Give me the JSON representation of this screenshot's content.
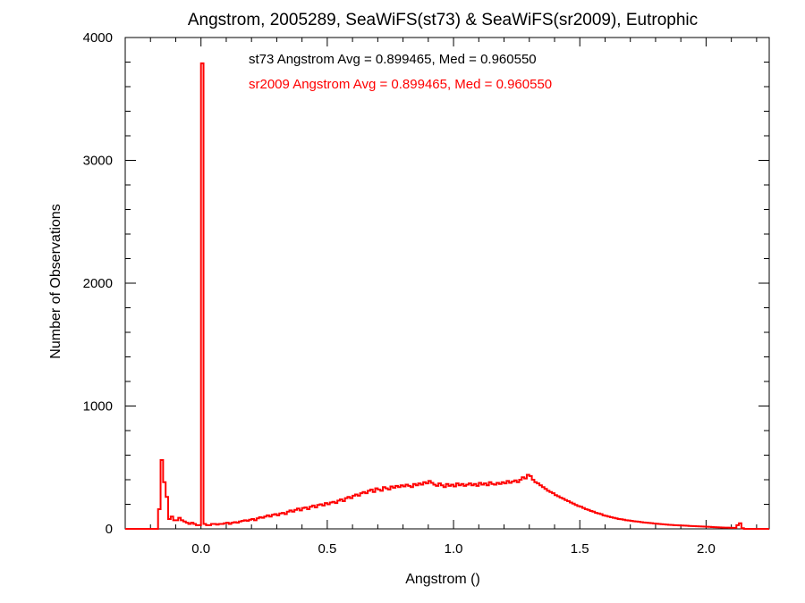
{
  "chart_data": {
    "type": "histogram-step",
    "title": "Angstrom, 2005289, SeaWiFS(st73) & SeaWiFS(sr2009), Eutrophic",
    "xlabel": "Angstrom ()",
    "ylabel": "Number of Observations",
    "xlim": [
      -0.3,
      2.25
    ],
    "ylim": [
      0,
      4000
    ],
    "x_ticks": [
      0.0,
      0.5,
      1.0,
      1.5,
      2.0
    ],
    "x_tick_labels": [
      "0.0",
      "0.5",
      "1.0",
      "1.5",
      "2.0"
    ],
    "y_ticks": [
      0,
      1000,
      2000,
      3000,
      4000
    ],
    "y_tick_labels": [
      "0",
      "1000",
      "2000",
      "3000",
      "4000"
    ],
    "grid": false,
    "annotations": [
      {
        "text": "st73 Angstrom Avg = 0.899465, Med = 0.960550",
        "color": "#000000"
      },
      {
        "text": "sr2009 Angstrom Avg = 0.899465, Med = 0.960550",
        "color": "#ff0000"
      }
    ],
    "series": [
      {
        "color": "#ff0000",
        "bin_width": 0.01,
        "bins": [
          [
            -0.3,
            0
          ],
          [
            -0.2,
            0
          ],
          [
            -0.17,
            160
          ],
          [
            -0.16,
            560
          ],
          [
            -0.15,
            380
          ],
          [
            -0.14,
            260
          ],
          [
            -0.13,
            80
          ],
          [
            -0.12,
            100
          ],
          [
            -0.11,
            70
          ],
          [
            -0.1,
            70
          ],
          [
            -0.09,
            90
          ],
          [
            -0.08,
            70
          ],
          [
            -0.07,
            60
          ],
          [
            -0.06,
            50
          ],
          [
            -0.05,
            40
          ],
          [
            -0.04,
            50
          ],
          [
            -0.03,
            40
          ],
          [
            -0.02,
            30
          ],
          [
            -0.01,
            30
          ],
          [
            0.0,
            3790
          ],
          [
            0.01,
            40
          ],
          [
            0.02,
            30
          ],
          [
            0.03,
            30
          ],
          [
            0.04,
            40
          ],
          [
            0.05,
            40
          ],
          [
            0.06,
            35
          ],
          [
            0.07,
            40
          ],
          [
            0.08,
            40
          ],
          [
            0.09,
            45
          ],
          [
            0.1,
            50
          ],
          [
            0.11,
            40
          ],
          [
            0.12,
            50
          ],
          [
            0.13,
            55
          ],
          [
            0.14,
            50
          ],
          [
            0.15,
            60
          ],
          [
            0.16,
            65
          ],
          [
            0.17,
            70
          ],
          [
            0.18,
            65
          ],
          [
            0.19,
            75
          ],
          [
            0.2,
            80
          ],
          [
            0.21,
            70
          ],
          [
            0.22,
            85
          ],
          [
            0.23,
            95
          ],
          [
            0.24,
            90
          ],
          [
            0.25,
            100
          ],
          [
            0.26,
            110
          ],
          [
            0.27,
            100
          ],
          [
            0.28,
            115
          ],
          [
            0.29,
            120
          ],
          [
            0.3,
            110
          ],
          [
            0.31,
            125
          ],
          [
            0.32,
            130
          ],
          [
            0.33,
            120
          ],
          [
            0.34,
            140
          ],
          [
            0.35,
            150
          ],
          [
            0.36,
            140
          ],
          [
            0.37,
            155
          ],
          [
            0.38,
            165
          ],
          [
            0.39,
            150
          ],
          [
            0.4,
            170
          ],
          [
            0.41,
            175
          ],
          [
            0.42,
            160
          ],
          [
            0.43,
            180
          ],
          [
            0.44,
            190
          ],
          [
            0.45,
            175
          ],
          [
            0.46,
            195
          ],
          [
            0.47,
            200
          ],
          [
            0.48,
            190
          ],
          [
            0.49,
            210
          ],
          [
            0.5,
            200
          ],
          [
            0.51,
            215
          ],
          [
            0.52,
            220
          ],
          [
            0.53,
            210
          ],
          [
            0.54,
            230
          ],
          [
            0.55,
            240
          ],
          [
            0.56,
            225
          ],
          [
            0.57,
            250
          ],
          [
            0.58,
            260
          ],
          [
            0.59,
            250
          ],
          [
            0.6,
            270
          ],
          [
            0.61,
            280
          ],
          [
            0.62,
            270
          ],
          [
            0.63,
            290
          ],
          [
            0.64,
            300
          ],
          [
            0.65,
            290
          ],
          [
            0.66,
            310
          ],
          [
            0.67,
            320
          ],
          [
            0.68,
            300
          ],
          [
            0.69,
            330
          ],
          [
            0.7,
            320
          ],
          [
            0.71,
            310
          ],
          [
            0.72,
            340
          ],
          [
            0.73,
            330
          ],
          [
            0.74,
            320
          ],
          [
            0.75,
            345
          ],
          [
            0.76,
            335
          ],
          [
            0.77,
            350
          ],
          [
            0.78,
            340
          ],
          [
            0.79,
            355
          ],
          [
            0.8,
            345
          ],
          [
            0.81,
            360
          ],
          [
            0.82,
            350
          ],
          [
            0.83,
            340
          ],
          [
            0.84,
            365
          ],
          [
            0.85,
            355
          ],
          [
            0.86,
            370
          ],
          [
            0.87,
            360
          ],
          [
            0.88,
            380
          ],
          [
            0.89,
            370
          ],
          [
            0.9,
            390
          ],
          [
            0.91,
            375
          ],
          [
            0.92,
            360
          ],
          [
            0.93,
            350
          ],
          [
            0.94,
            370
          ],
          [
            0.95,
            355
          ],
          [
            0.96,
            340
          ],
          [
            0.97,
            365
          ],
          [
            0.98,
            350
          ],
          [
            0.99,
            360
          ],
          [
            1.0,
            345
          ],
          [
            1.01,
            370
          ],
          [
            1.02,
            355
          ],
          [
            1.03,
            365
          ],
          [
            1.04,
            350
          ],
          [
            1.05,
            360
          ],
          [
            1.06,
            370
          ],
          [
            1.07,
            355
          ],
          [
            1.08,
            365
          ],
          [
            1.09,
            350
          ],
          [
            1.1,
            375
          ],
          [
            1.11,
            360
          ],
          [
            1.12,
            370
          ],
          [
            1.13,
            355
          ],
          [
            1.14,
            380
          ],
          [
            1.15,
            365
          ],
          [
            1.16,
            360
          ],
          [
            1.17,
            375
          ],
          [
            1.18,
            365
          ],
          [
            1.19,
            380
          ],
          [
            1.2,
            370
          ],
          [
            1.21,
            390
          ],
          [
            1.22,
            375
          ],
          [
            1.23,
            385
          ],
          [
            1.24,
            395
          ],
          [
            1.25,
            380
          ],
          [
            1.26,
            400
          ],
          [
            1.27,
            420
          ],
          [
            1.28,
            410
          ],
          [
            1.29,
            440
          ],
          [
            1.3,
            430
          ],
          [
            1.31,
            400
          ],
          [
            1.32,
            380
          ],
          [
            1.33,
            370
          ],
          [
            1.34,
            355
          ],
          [
            1.35,
            340
          ],
          [
            1.36,
            325
          ],
          [
            1.37,
            310
          ],
          [
            1.38,
            300
          ],
          [
            1.39,
            290
          ],
          [
            1.4,
            275
          ],
          [
            1.41,
            265
          ],
          [
            1.42,
            255
          ],
          [
            1.43,
            245
          ],
          [
            1.44,
            235
          ],
          [
            1.45,
            225
          ],
          [
            1.46,
            215
          ],
          [
            1.47,
            205
          ],
          [
            1.48,
            195
          ],
          [
            1.49,
            185
          ],
          [
            1.5,
            180
          ],
          [
            1.51,
            170
          ],
          [
            1.52,
            160
          ],
          [
            1.53,
            155
          ],
          [
            1.54,
            145
          ],
          [
            1.55,
            140
          ],
          [
            1.56,
            130
          ],
          [
            1.57,
            125
          ],
          [
            1.58,
            120
          ],
          [
            1.59,
            110
          ],
          [
            1.6,
            105
          ],
          [
            1.61,
            100
          ],
          [
            1.62,
            95
          ],
          [
            1.63,
            90
          ],
          [
            1.64,
            85
          ],
          [
            1.65,
            80
          ],
          [
            1.66,
            78
          ],
          [
            1.67,
            75
          ],
          [
            1.68,
            70
          ],
          [
            1.69,
            68
          ],
          [
            1.7,
            65
          ],
          [
            1.71,
            62
          ],
          [
            1.72,
            60
          ],
          [
            1.73,
            58
          ],
          [
            1.74,
            55
          ],
          [
            1.75,
            52
          ],
          [
            1.76,
            50
          ],
          [
            1.77,
            48
          ],
          [
            1.78,
            46
          ],
          [
            1.79,
            44
          ],
          [
            1.8,
            42
          ],
          [
            1.81,
            40
          ],
          [
            1.82,
            38
          ],
          [
            1.83,
            36
          ],
          [
            1.84,
            35
          ],
          [
            1.85,
            33
          ],
          [
            1.86,
            32
          ],
          [
            1.87,
            30
          ],
          [
            1.88,
            29
          ],
          [
            1.89,
            28
          ],
          [
            1.9,
            27
          ],
          [
            1.91,
            26
          ],
          [
            1.92,
            25
          ],
          [
            1.93,
            24
          ],
          [
            1.94,
            23
          ],
          [
            1.95,
            22
          ],
          [
            1.96,
            21
          ],
          [
            1.97,
            20
          ],
          [
            1.98,
            19
          ],
          [
            1.99,
            18
          ],
          [
            2.0,
            17
          ],
          [
            2.01,
            16
          ],
          [
            2.02,
            15
          ],
          [
            2.03,
            14
          ],
          [
            2.04,
            13
          ],
          [
            2.05,
            12
          ],
          [
            2.06,
            11
          ],
          [
            2.07,
            10
          ],
          [
            2.08,
            10
          ],
          [
            2.09,
            9
          ],
          [
            2.1,
            8
          ],
          [
            2.11,
            8
          ],
          [
            2.12,
            30
          ],
          [
            2.13,
            45
          ],
          [
            2.14,
            5
          ],
          [
            2.15,
            0
          ]
        ]
      }
    ]
  }
}
